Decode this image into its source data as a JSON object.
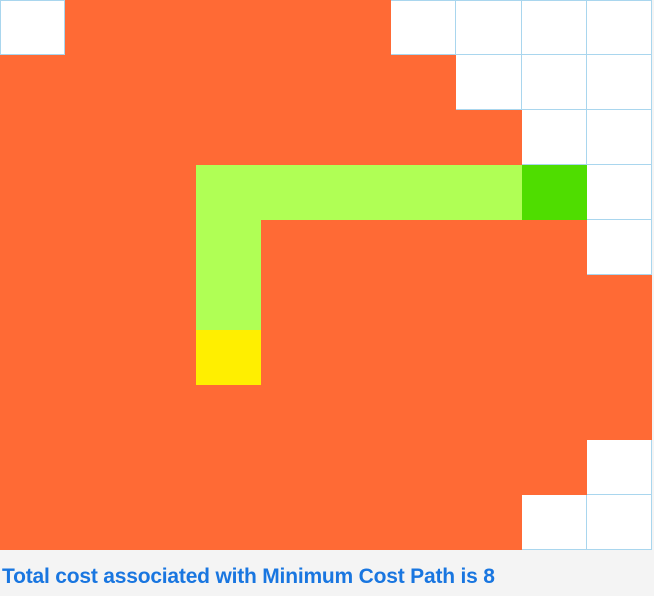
{
  "colors": {
    "empty": "#ffffff",
    "visited": "#ff6a35",
    "path": "#b0ff55",
    "start": "#ffef00",
    "goal": "#4fdd00",
    "grid_line": "#a9d6ee",
    "text": "#1976e0"
  },
  "legend_codes": {
    "E": "empty",
    "V": "visited",
    "P": "path",
    "S": "start",
    "G": "goal"
  },
  "grid": {
    "rows": 10,
    "cols": 10,
    "cells": [
      [
        "E",
        "V",
        "V",
        "V",
        "V",
        "V",
        "E",
        "E",
        "E",
        "E"
      ],
      [
        "V",
        "V",
        "V",
        "V",
        "V",
        "V",
        "V",
        "E",
        "E",
        "E"
      ],
      [
        "V",
        "V",
        "V",
        "V",
        "V",
        "V",
        "V",
        "V",
        "E",
        "E"
      ],
      [
        "V",
        "V",
        "V",
        "P",
        "P",
        "P",
        "P",
        "P",
        "G",
        "E"
      ],
      [
        "V",
        "V",
        "V",
        "P",
        "V",
        "V",
        "V",
        "V",
        "V",
        "E"
      ],
      [
        "V",
        "V",
        "V",
        "P",
        "V",
        "V",
        "V",
        "V",
        "V",
        "V"
      ],
      [
        "V",
        "V",
        "V",
        "S",
        "V",
        "V",
        "V",
        "V",
        "V",
        "V"
      ],
      [
        "V",
        "V",
        "V",
        "V",
        "V",
        "V",
        "V",
        "V",
        "V",
        "V"
      ],
      [
        "V",
        "V",
        "V",
        "V",
        "V",
        "V",
        "V",
        "V",
        "V",
        "E"
      ],
      [
        "V",
        "V",
        "V",
        "V",
        "V",
        "V",
        "V",
        "V",
        "E",
        "E"
      ]
    ]
  },
  "result": {
    "text": "Total cost associated with Minimum Cost Path is 8"
  }
}
